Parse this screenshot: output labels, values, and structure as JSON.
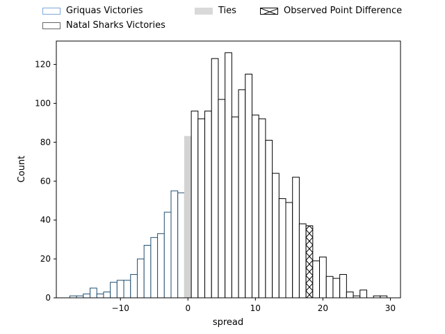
{
  "chart_data": {
    "type": "bar",
    "xlabel": "spread",
    "ylabel": "Count",
    "xlim": [
      -19.5,
      31.5
    ],
    "ylim": [
      0,
      132
    ],
    "xticks": [
      -10,
      0,
      10,
      20,
      30
    ],
    "xtick_labels": [
      "−10",
      "0",
      "10",
      "20",
      "30"
    ],
    "yticks": [
      0,
      20,
      40,
      60,
      80,
      100,
      120
    ],
    "ytick_labels": [
      "0",
      "20",
      "40",
      "60",
      "80",
      "100",
      "120"
    ],
    "legend_position": "top, above plot",
    "observed_point_difference": 18,
    "series": [
      {
        "name": "Griquas Victories",
        "color": "#1f4e6e",
        "x": [
          -17,
          -16,
          -15,
          -14,
          -13,
          -12,
          -11,
          -10,
          -9,
          -8,
          -7,
          -6,
          -5,
          -4,
          -3,
          -2,
          -1
        ],
        "values": [
          1,
          1,
          2,
          5,
          2,
          3,
          8,
          9,
          9,
          12,
          20,
          27,
          31,
          33,
          44,
          55,
          54
        ]
      },
      {
        "name": "Ties",
        "color": "#d3d3d3",
        "x": [
          0
        ],
        "values": [
          83
        ]
      },
      {
        "name": "Natal Sharks Victories",
        "color": "#000000",
        "x": [
          1,
          2,
          3,
          4,
          5,
          6,
          7,
          8,
          9,
          10,
          11,
          12,
          13,
          14,
          15,
          16,
          17,
          18,
          19,
          20,
          21,
          22,
          23,
          24,
          25,
          26,
          27,
          28,
          29
        ],
        "values": [
          96,
          92,
          96,
          123,
          102,
          126,
          93,
          107,
          115,
          94,
          92,
          81,
          64,
          51,
          49,
          62,
          38,
          37,
          19,
          21,
          11,
          10,
          12,
          3,
          1,
          4,
          0,
          1,
          1
        ]
      }
    ],
    "legend": [
      {
        "label": "Griquas Victories",
        "style": "outline-blue"
      },
      {
        "label": "Natal Sharks Victories",
        "style": "outline-gray"
      },
      {
        "label": "Ties",
        "style": "fill-gray"
      },
      {
        "label": "Observed Point Difference",
        "style": "hatch-x"
      }
    ]
  }
}
